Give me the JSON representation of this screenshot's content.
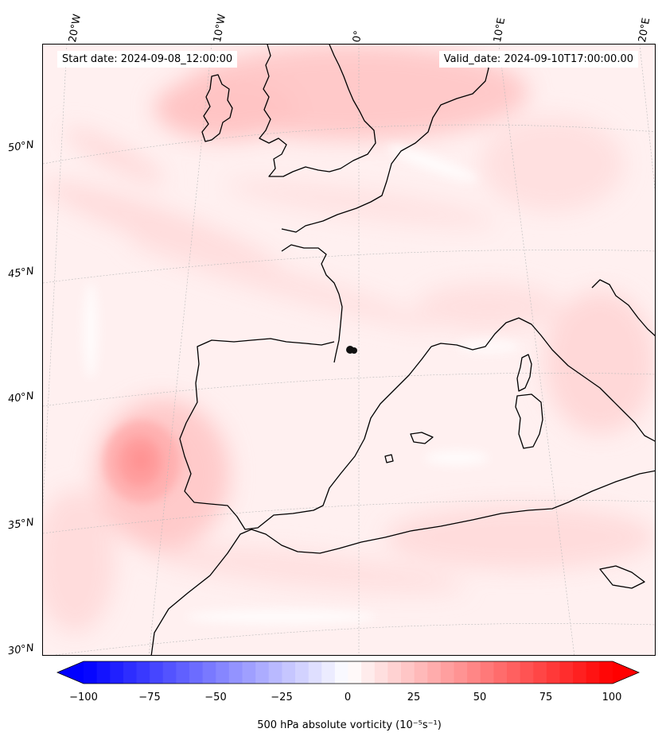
{
  "header": {
    "start_date": "Start date: 2024-09-08_12:00:00",
    "valid_date": "Valid_date: 2024-09-10T17:00:00.00"
  },
  "map": {
    "field": "500 hPa absolute vorticity",
    "lon_labels": [
      "20°W",
      "10°W",
      "0°",
      "10°E",
      "20°E"
    ],
    "lat_labels": [
      "50°N",
      "45°N",
      "40°N",
      "35°N",
      "30°N"
    ],
    "grid": true,
    "coastline_color": "#000000",
    "marker": "black dot over the Bay of Biscay coast"
  },
  "colorbar": {
    "label": "500 hPa absolute vorticity (10⁻⁵s⁻¹)",
    "ticks": [
      "−100",
      "−75",
      "−50",
      "−25",
      "0",
      "25",
      "50",
      "75",
      "100"
    ],
    "range": [
      -100,
      100
    ],
    "colormap": "bwr",
    "extend": "both",
    "colors": {
      "negative_end": "#0000ff",
      "center": "#ffffff",
      "positive_end": "#ff0000"
    }
  }
}
